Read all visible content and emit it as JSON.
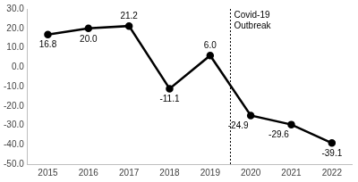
{
  "chart_data": {
    "type": "line",
    "categories": [
      "2015",
      "2016",
      "2017",
      "2018",
      "2019",
      "2020",
      "2021",
      "2022"
    ],
    "values": [
      16.8,
      20.0,
      21.2,
      -11.1,
      6.0,
      -24.9,
      -29.6,
      -39.1
    ],
    "value_labels": [
      "16.8",
      "20.0",
      "21.2",
      "-11.1",
      "6.0",
      "-24.9",
      "-29.6",
      "-39.1"
    ],
    "color": "#000000",
    "marker": "circle",
    "line_style": "solid",
    "ylim": [
      -50,
      30
    ],
    "yticks": [
      {
        "value": -50,
        "label": "-50.0"
      },
      {
        "value": -40,
        "label": "-40.0"
      },
      {
        "value": -30,
        "label": "-30.0"
      },
      {
        "value": -20,
        "label": "-20.0"
      },
      {
        "value": -10,
        "label": "-10.0"
      },
      {
        "value": 0,
        "label": "0.0"
      },
      {
        "value": 10,
        "label": "10.0"
      },
      {
        "value": 20,
        "label": "20.0"
      },
      {
        "value": 30,
        "label": "30.0"
      }
    ],
    "grid": false,
    "data_labels": true,
    "annotations": [
      {
        "text": "Covid-19 Outbreak",
        "between": [
          "2019",
          "2020"
        ]
      }
    ]
  }
}
